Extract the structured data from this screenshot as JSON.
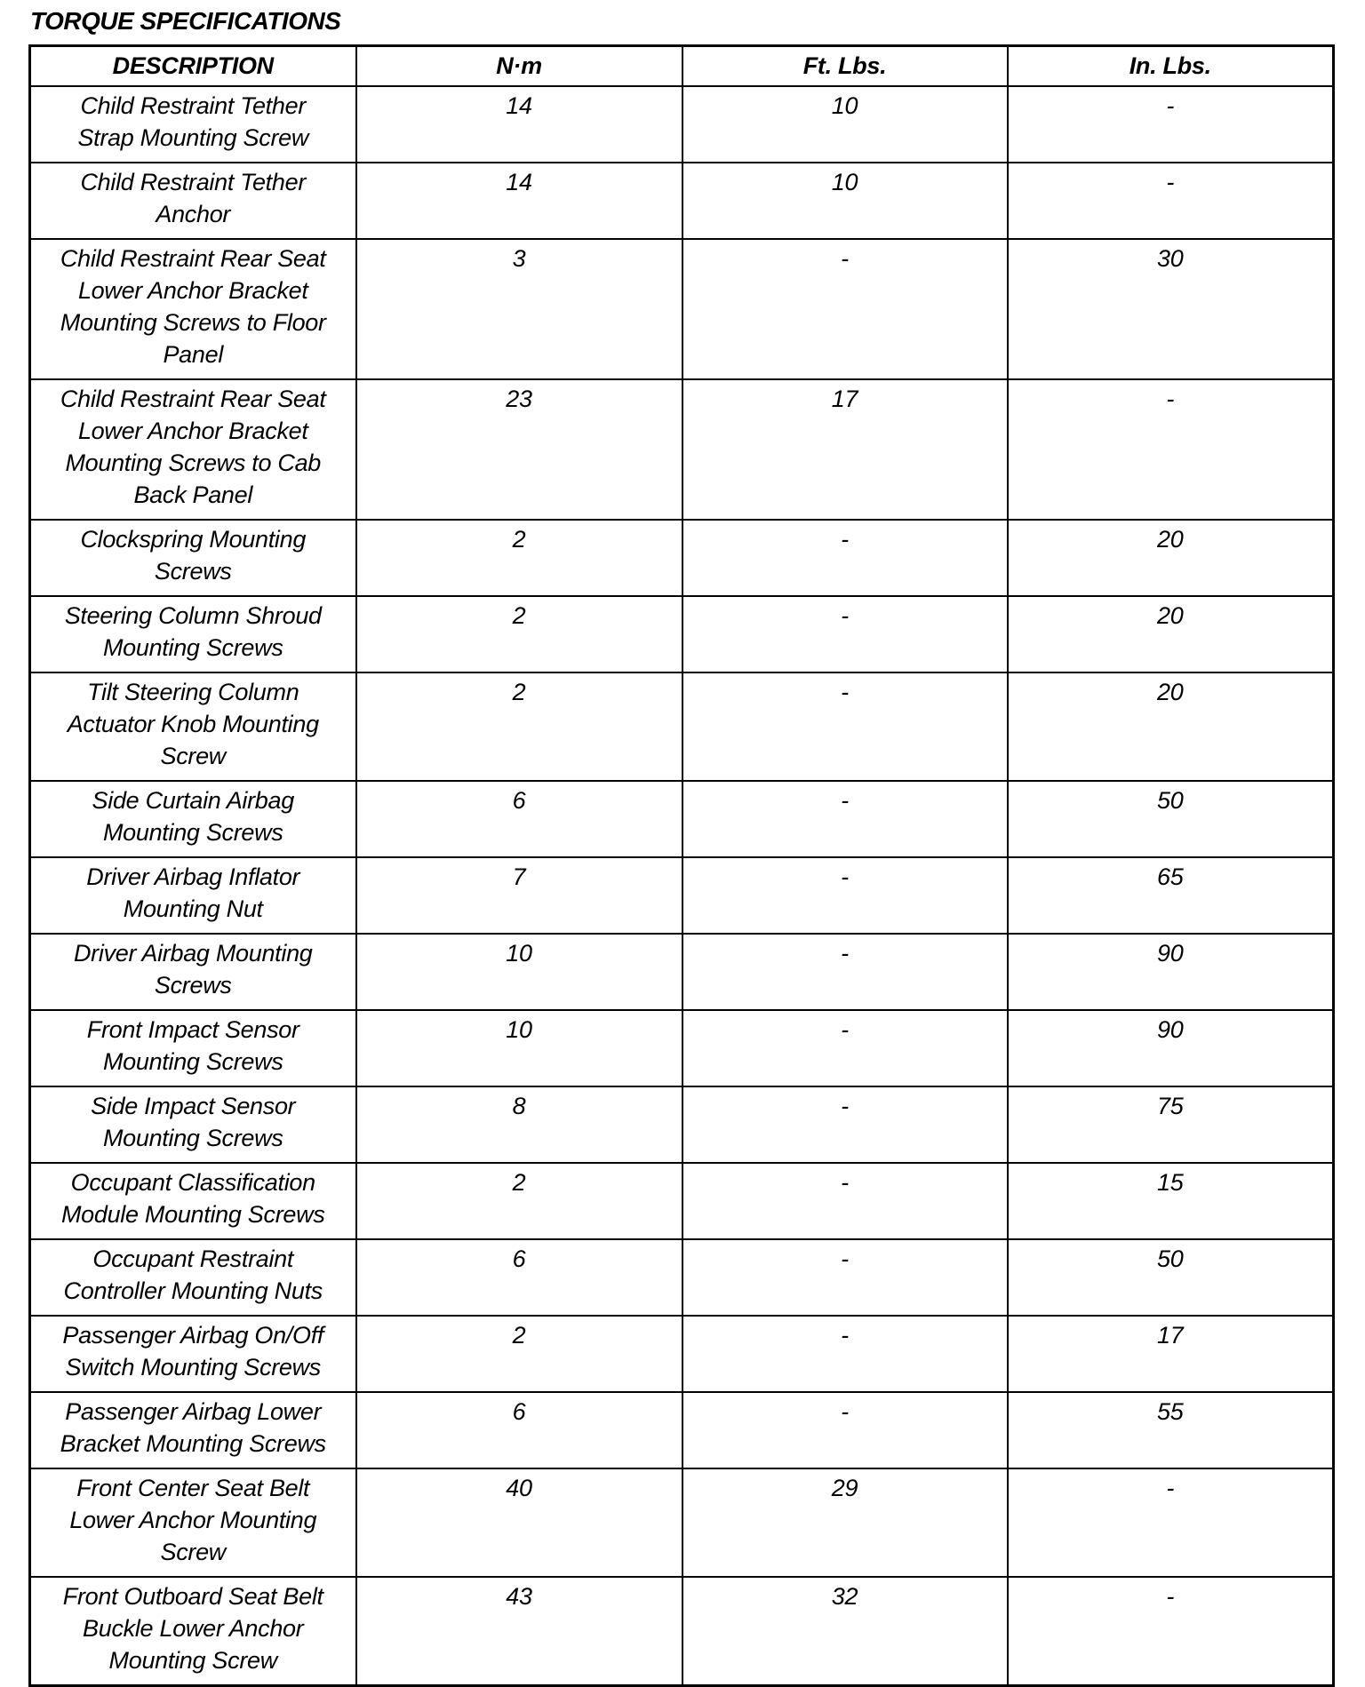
{
  "title": "TORQUE SPECIFICATIONS",
  "columns": [
    "DESCRIPTION",
    "N·m",
    "Ft. Lbs.",
    "In. Lbs."
  ],
  "rows": [
    {
      "description": "Child Restraint Tether\nStrap Mounting Screw",
      "nm": "14",
      "ft_lbs": "10",
      "in_lbs": "-"
    },
    {
      "description": "Child Restraint Tether\nAnchor",
      "nm": "14",
      "ft_lbs": "10",
      "in_lbs": "-"
    },
    {
      "description": "Child Restraint Rear Seat\nLower Anchor Bracket\nMounting Screws to Floor\nPanel",
      "nm": "3",
      "ft_lbs": "-",
      "in_lbs": "30"
    },
    {
      "description": "Child Restraint Rear Seat\nLower Anchor Bracket\nMounting Screws to Cab\nBack Panel",
      "nm": "23",
      "ft_lbs": "17",
      "in_lbs": "-"
    },
    {
      "description": "Clockspring Mounting\nScrews",
      "nm": "2",
      "ft_lbs": "-",
      "in_lbs": "20"
    },
    {
      "description": "Steering Column Shroud\nMounting Screws",
      "nm": "2",
      "ft_lbs": "-",
      "in_lbs": "20"
    },
    {
      "description": "Tilt Steering Column\nActuator Knob Mounting\nScrew",
      "nm": "2",
      "ft_lbs": "-",
      "in_lbs": "20"
    },
    {
      "description": "Side Curtain Airbag\nMounting Screws",
      "nm": "6",
      "ft_lbs": "-",
      "in_lbs": "50"
    },
    {
      "description": "Driver Airbag Inflator\nMounting Nut",
      "nm": "7",
      "ft_lbs": "-",
      "in_lbs": "65"
    },
    {
      "description": "Driver Airbag Mounting\nScrews",
      "nm": "10",
      "ft_lbs": "-",
      "in_lbs": "90"
    },
    {
      "description": "Front Impact Sensor\nMounting Screws",
      "nm": "10",
      "ft_lbs": "-",
      "in_lbs": "90"
    },
    {
      "description": "Side Impact Sensor\nMounting Screws",
      "nm": "8",
      "ft_lbs": "-",
      "in_lbs": "75"
    },
    {
      "description": "Occupant Classification\nModule Mounting Screws",
      "nm": "2",
      "ft_lbs": "-",
      "in_lbs": "15"
    },
    {
      "description": "Occupant Restraint\nController Mounting Nuts",
      "nm": "6",
      "ft_lbs": "-",
      "in_lbs": "50"
    },
    {
      "description": "Passenger Airbag On/Off\nSwitch Mounting Screws",
      "nm": "2",
      "ft_lbs": "-",
      "in_lbs": "17"
    },
    {
      "description": "Passenger Airbag Lower\nBracket Mounting Screws",
      "nm": "6",
      "ft_lbs": "-",
      "in_lbs": "55"
    },
    {
      "description": "Front Center Seat Belt\nLower Anchor Mounting\nScrew",
      "nm": "40",
      "ft_lbs": "29",
      "in_lbs": "-"
    },
    {
      "description": "Front Outboard Seat Belt\nBuckle Lower Anchor\nMounting Screw",
      "nm": "43",
      "ft_lbs": "32",
      "in_lbs": "-"
    }
  ]
}
